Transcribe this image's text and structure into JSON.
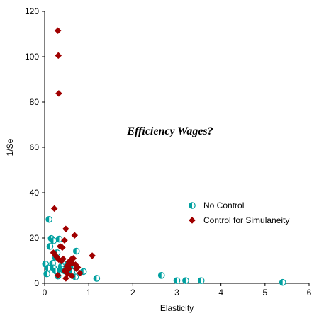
{
  "chart_data": {
    "type": "scatter",
    "xlabel": "Elasticity",
    "ylabel": "1/Se",
    "xlim": [
      0,
      6
    ],
    "ylim": [
      0,
      120
    ],
    "xticks": [
      "0",
      "1",
      "2",
      "3",
      "4",
      "5",
      "6"
    ],
    "yticks": [
      "0",
      "20",
      "40",
      "60",
      "80",
      "100",
      "120"
    ],
    "annotation": "Efficiency Wages?",
    "grid": false,
    "legend_position": "right-center",
    "series": [
      {
        "name": "No Control",
        "marker": "half-filled-circle",
        "color": "#00A0A0",
        "points": [
          [
            0.02,
            8.5
          ],
          [
            0.05,
            4.2
          ],
          [
            0.08,
            6.8
          ],
          [
            0.1,
            28.2
          ],
          [
            0.12,
            16.3
          ],
          [
            0.15,
            19.8
          ],
          [
            0.18,
            8.8
          ],
          [
            0.2,
            6.8
          ],
          [
            0.2,
            18.8
          ],
          [
            0.25,
            5.5
          ],
          [
            0.25,
            11.2
          ],
          [
            0.28,
            13.5
          ],
          [
            0.3,
            3.2
          ],
          [
            0.33,
            19.5
          ],
          [
            0.35,
            5.8
          ],
          [
            0.38,
            7.5
          ],
          [
            0.4,
            6.2
          ],
          [
            0.45,
            5.5
          ],
          [
            0.5,
            7.2
          ],
          [
            0.52,
            8.5
          ],
          [
            0.55,
            4.8
          ],
          [
            0.58,
            6.5
          ],
          [
            0.6,
            9.2
          ],
          [
            0.62,
            5.2
          ],
          [
            0.65,
            7.8
          ],
          [
            0.7,
            2.8
          ],
          [
            0.72,
            14.2
          ],
          [
            0.88,
            5.2
          ],
          [
            1.18,
            2.2
          ],
          [
            2.65,
            3.5
          ],
          [
            3.0,
            1.2
          ],
          [
            3.2,
            1.2
          ],
          [
            3.55,
            1.2
          ],
          [
            5.4,
            0.4
          ]
        ]
      },
      {
        "name": "Control for Simulaneity",
        "marker": "diamond",
        "color": "#A00000",
        "points": [
          [
            0.22,
            33.0
          ],
          [
            0.3,
            111.5
          ],
          [
            0.31,
            100.5
          ],
          [
            0.32,
            83.8
          ],
          [
            0.48,
            24.0
          ],
          [
            0.68,
            21.2
          ],
          [
            0.45,
            19.0
          ],
          [
            0.35,
            16.3
          ],
          [
            0.4,
            15.8
          ],
          [
            0.2,
            13.5
          ],
          [
            0.25,
            12.2
          ],
          [
            0.28,
            11.5
          ],
          [
            0.32,
            10.5
          ],
          [
            0.38,
            9.8
          ],
          [
            0.42,
            10.8
          ],
          [
            0.55,
            9.5
          ],
          [
            0.6,
            10.5
          ],
          [
            0.62,
            9.0
          ],
          [
            0.65,
            11.0
          ],
          [
            0.7,
            8.2
          ],
          [
            1.08,
            12.2
          ],
          [
            0.5,
            7.5
          ],
          [
            0.55,
            6.5
          ],
          [
            0.58,
            8.5
          ],
          [
            0.45,
            5.5
          ],
          [
            0.52,
            4.2
          ],
          [
            0.3,
            3.5
          ],
          [
            0.48,
            2.2
          ],
          [
            0.62,
            3.2
          ],
          [
            0.72,
            6.5
          ],
          [
            0.8,
            4.5
          ],
          [
            0.75,
            7.0
          ]
        ]
      }
    ]
  }
}
